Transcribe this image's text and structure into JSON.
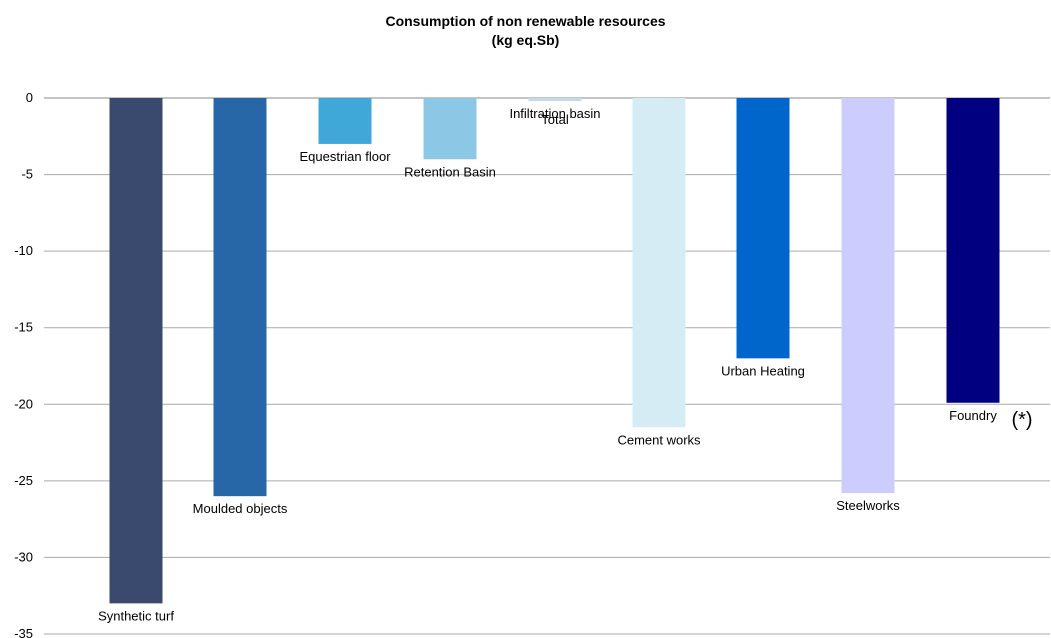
{
  "chart_data": {
    "type": "bar",
    "title": "Consumption of non renewable resources",
    "subtitle": "(kg eq.Sb)",
    "xlabel": "",
    "ylabel": "",
    "ylim": [
      -35,
      0
    ],
    "y_ticks": [
      "0",
      "-5",
      "-10",
      "-15",
      "-20",
      "-25",
      "-30",
      "-35"
    ],
    "grid": true,
    "legend": "none",
    "categories": [
      "Synthetic turf",
      "Moulded objects",
      "Equestrian floor",
      "Retention Basin",
      "Total",
      "Cement works",
      "Urban Heating",
      "Steelworks",
      "Foundry"
    ],
    "values": [
      -33,
      -26,
      -3,
      -4,
      -0.2,
      -21.5,
      -17,
      -25.8,
      -19.9
    ],
    "colors": [
      "#3a4a6e",
      "#2767a8",
      "#3fa8d8",
      "#8cc8e6",
      "#c6d9ec",
      "#d6ecf5",
      "#0066cc",
      "#ccccff",
      "#000080"
    ],
    "annotations": [
      "Infiltration basin",
      "(*)"
    ]
  }
}
